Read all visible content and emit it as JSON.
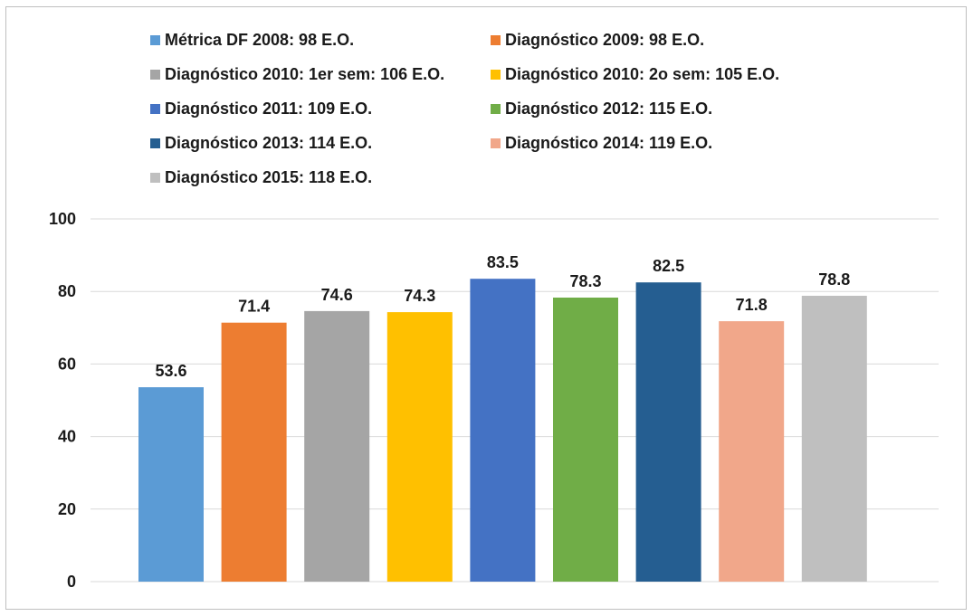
{
  "chart_data": {
    "type": "bar",
    "title": "",
    "xlabel": "",
    "ylabel": "",
    "ylim": [
      0,
      100
    ],
    "yticks": [
      0,
      20,
      40,
      60,
      80,
      100
    ],
    "grid": true,
    "legend_position": "top",
    "categories": [
      "Métrica DF 2008: 98 E.O.",
      "Diagnóstico 2009: 98 E.O.",
      "Diagnóstico 2010: 1er sem: 106 E.O.",
      "Diagnóstico 2010: 2o sem: 105 E.O.",
      "Diagnóstico 2011: 109 E.O.",
      "Diagnóstico 2012: 115 E.O.",
      "Diagnóstico 2013: 114 E.O.",
      "Diagnóstico 2014: 119 E.O.",
      "Diagnóstico 2015: 118 E.O."
    ],
    "values": [
      53.6,
      71.4,
      74.6,
      74.3,
      83.5,
      78.3,
      82.5,
      71.8,
      78.8
    ],
    "value_labels": [
      "53.6",
      "71.4",
      "74.6",
      "74.3",
      "83.5",
      "78.3",
      "82.5",
      "71.8",
      "78.8"
    ],
    "colors": [
      "#5b9bd5",
      "#ed7d31",
      "#a5a5a5",
      "#ffc000",
      "#4472c4",
      "#70ad47",
      "#255e91",
      "#f1a78a",
      "#bfbfbf"
    ],
    "gridline_color": "#d9d9d9"
  }
}
